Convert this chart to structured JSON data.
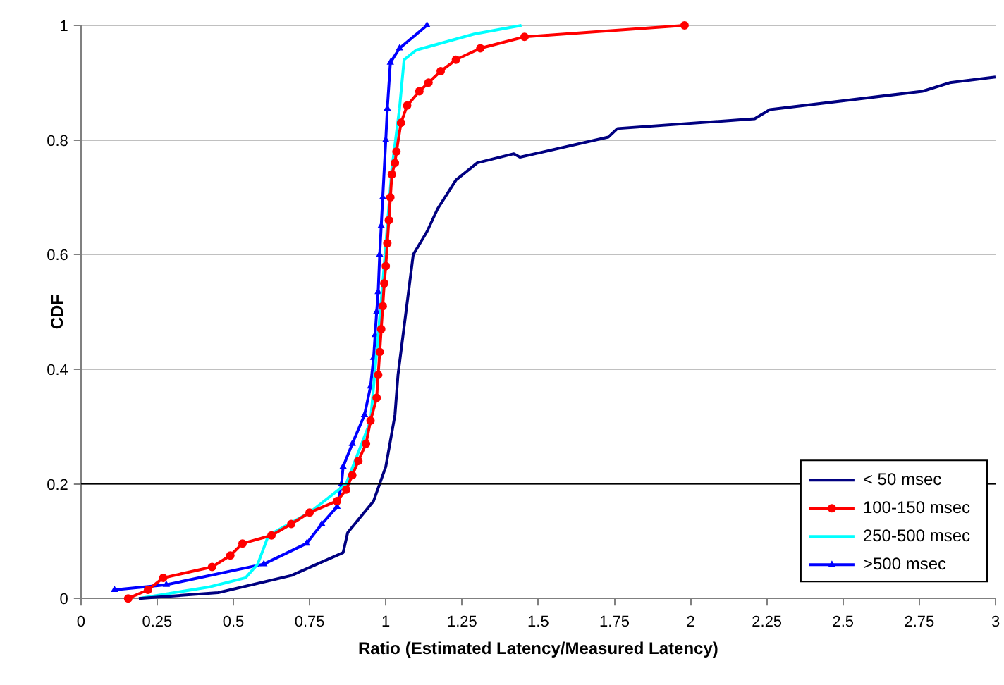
{
  "chart_data": {
    "type": "line",
    "xlabel": "Ratio (Estimated Latency/Measured Latency)",
    "ylabel": "CDF",
    "xlim": [
      0,
      3
    ],
    "xticks": [
      0,
      0.25,
      0.5,
      0.75,
      1,
      1.25,
      1.5,
      1.75,
      2,
      2.25,
      2.5,
      2.75,
      3
    ],
    "ylim": [
      0,
      1
    ],
    "yticks": [
      0,
      0.2,
      0.4,
      0.6,
      0.8,
      1
    ],
    "grid": "y",
    "legend": "bottom right",
    "ref_lines": [
      {
        "axis": "y",
        "value": 0.2,
        "color": "#000000"
      }
    ],
    "series": [
      {
        "name": "< 50 msec",
        "color": "#000080",
        "marker": "none",
        "x": [
          0.19,
          0.45,
          0.69,
          0.86,
          0.875,
          0.96,
          1.0,
          1.03,
          1.04,
          1.09,
          1.135,
          1.17,
          1.23,
          1.3,
          1.42,
          1.44,
          1.73,
          1.76,
          2.21,
          2.26,
          2.76,
          2.85,
          3.0
        ],
        "values": [
          0,
          0.01,
          0.04,
          0.08,
          0.115,
          0.17,
          0.23,
          0.32,
          0.39,
          0.6,
          0.64,
          0.68,
          0.73,
          0.76,
          0.776,
          0.77,
          0.805,
          0.82,
          0.837,
          0.853,
          0.885,
          0.9,
          0.91
        ]
      },
      {
        "name": "100-150 msec",
        "color": "#ff0000",
        "marker": "circle",
        "x": [
          0.155,
          0.22,
          0.27,
          0.43,
          0.49,
          0.53,
          0.625,
          0.69,
          0.75,
          0.84,
          0.87,
          0.89,
          0.91,
          0.935,
          0.95,
          0.97,
          0.975,
          0.98,
          0.985,
          0.99,
          0.995,
          1.0,
          1.005,
          1.01,
          1.015,
          1.02,
          1.03,
          1.035,
          1.05,
          1.07,
          1.11,
          1.14,
          1.18,
          1.23,
          1.31,
          1.455,
          1.98
        ],
        "values": [
          0,
          0.015,
          0.036,
          0.055,
          0.075,
          0.096,
          0.11,
          0.13,
          0.15,
          0.17,
          0.19,
          0.215,
          0.24,
          0.27,
          0.31,
          0.35,
          0.39,
          0.43,
          0.47,
          0.51,
          0.55,
          0.58,
          0.62,
          0.66,
          0.7,
          0.74,
          0.76,
          0.78,
          0.83,
          0.86,
          0.885,
          0.9,
          0.92,
          0.94,
          0.96,
          0.98,
          1.0
        ]
      },
      {
        "name": "250-500 msec",
        "color": "#00ffff",
        "marker": "none",
        "x": [
          0.19,
          0.42,
          0.54,
          0.58,
          0.615,
          0.75,
          0.87,
          0.95,
          0.99,
          1.02,
          1.045,
          1.06,
          1.1,
          1.29,
          1.445
        ],
        "values": [
          0,
          0.02,
          0.036,
          0.06,
          0.11,
          0.15,
          0.2,
          0.31,
          0.55,
          0.75,
          0.855,
          0.94,
          0.957,
          0.985,
          1.0
        ]
      },
      {
        "name": ">500 msec",
        "color": "#0000ff",
        "marker": "triangle",
        "x": [
          0.11,
          0.28,
          0.6,
          0.74,
          0.79,
          0.84,
          0.855,
          0.86,
          0.89,
          0.93,
          0.95,
          0.96,
          0.965,
          0.97,
          0.975,
          0.98,
          0.985,
          0.99,
          1.0,
          1.005,
          1.015,
          1.045,
          1.135
        ],
        "values": [
          0.015,
          0.024,
          0.06,
          0.096,
          0.13,
          0.16,
          0.2,
          0.23,
          0.27,
          0.32,
          0.37,
          0.42,
          0.46,
          0.5,
          0.535,
          0.6,
          0.65,
          0.7,
          0.8,
          0.855,
          0.935,
          0.96,
          1.0
        ]
      }
    ]
  }
}
